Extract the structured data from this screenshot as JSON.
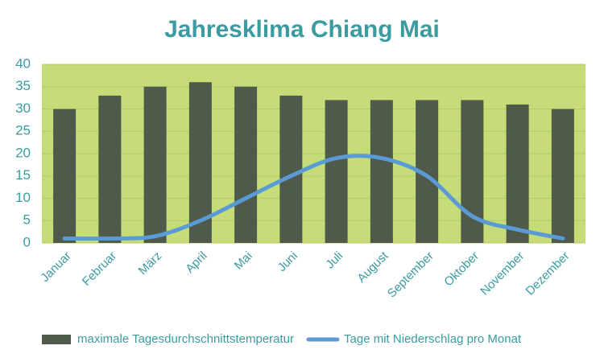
{
  "chart_data": {
    "type": "bar",
    "title": "Jahresklima Chiang Mai",
    "categories": [
      "Januar",
      "Februar",
      "März",
      "April",
      "Mai",
      "Juni",
      "Juli",
      "August",
      "September",
      "Oktober",
      "November",
      "Dezember"
    ],
    "series": [
      {
        "name": "maximale Tagesdurchschnittstemperatur",
        "type": "bar",
        "color": "#4f5a4a",
        "values": [
          30,
          33,
          35,
          36,
          35,
          33,
          32,
          32,
          32,
          32,
          31,
          30
        ]
      },
      {
        "name": "Tage mit Niederschlag pro Monat",
        "type": "line",
        "color": "#5b9bd5",
        "values": [
          1,
          1,
          1.5,
          5,
          10,
          15,
          19,
          19,
          15,
          6,
          3,
          1
        ]
      }
    ],
    "ylim": [
      0,
      40
    ],
    "yticks": [
      0,
      5,
      10,
      15,
      20,
      25,
      30,
      35,
      40
    ],
    "grid": true,
    "plot_background": "#c5dc78",
    "text_color": "#3a9ca0"
  }
}
